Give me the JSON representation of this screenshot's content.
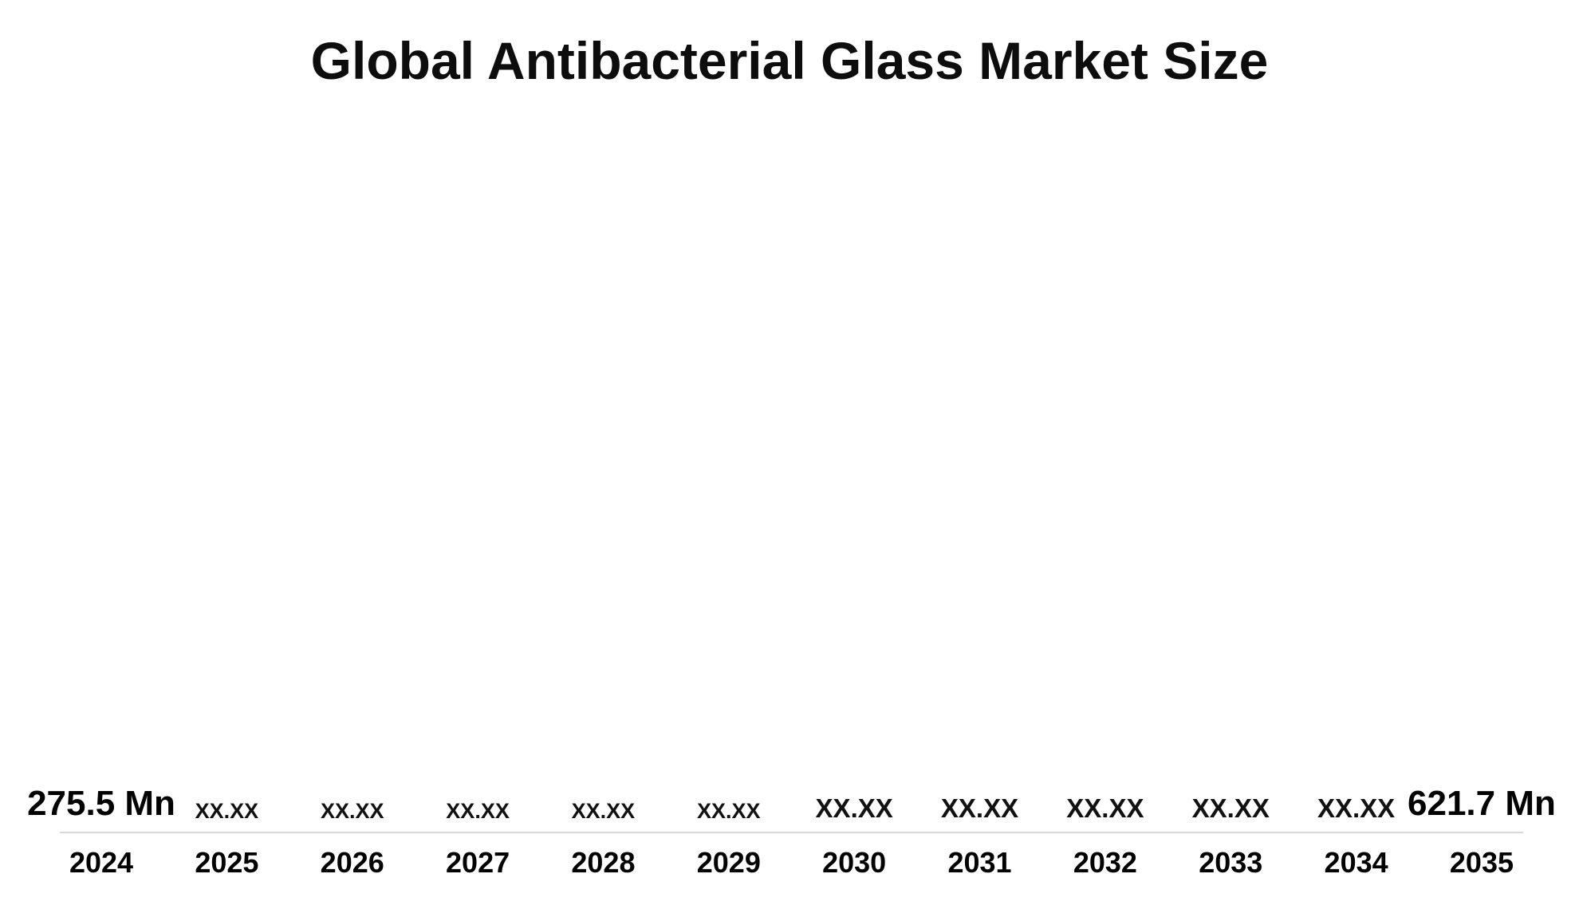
{
  "page": {
    "background_color": "#ffffff"
  },
  "chart_data": {
    "type": "bar",
    "title": "Global Antibacterial Glass Market Size",
    "categories": [
      "2024",
      "2025",
      "2026",
      "2027",
      "2028",
      "2029",
      "2030",
      "2031",
      "2032",
      "2033",
      "2034",
      "2035"
    ],
    "values": [
      275.5,
      null,
      null,
      null,
      null,
      null,
      null,
      null,
      null,
      null,
      null,
      621.7
    ],
    "value_labels": [
      "275.5 Mn",
      "XX.XX",
      "XX.XX",
      "XX.XX",
      "XX.XX",
      "XX.XX",
      "XX.XX",
      "XX.XX",
      "XX.XX",
      "XX.XX",
      "XX.XX",
      "621.7 Mn"
    ],
    "value_unit": "Mn",
    "bar_heights_pct": [
      17.6,
      24.5,
      31.2,
      45.1,
      52.1,
      55.7,
      58.8,
      65.7,
      72.8,
      79.6,
      86.6,
      93.5
    ],
    "bar_color": "#132a5c",
    "axis_line_color": "#d9d9d9",
    "xlabel": "",
    "ylabel": "",
    "grid": false,
    "legend_position": "none"
  }
}
